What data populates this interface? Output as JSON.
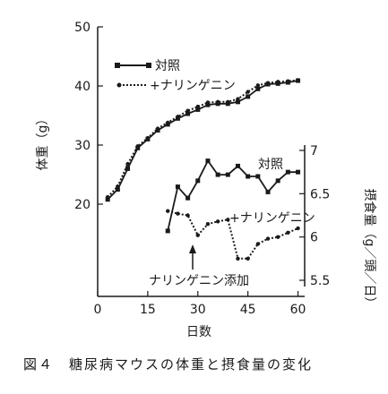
{
  "chart_data": [
    {
      "type": "line",
      "ylabel": "体重（g）",
      "xlabel": "日数",
      "xlim": [
        0,
        62
      ],
      "ylim": [
        10,
        50
      ],
      "xticks": [
        "0",
        "15",
        "30",
        "45",
        "60"
      ],
      "yticks": [
        "20",
        "30",
        "40",
        "50"
      ],
      "legend_position": "top-left",
      "series": [
        {
          "name": "対照",
          "style": "solid-square",
          "x": [
            3,
            6,
            9,
            12,
            15,
            18,
            21,
            24,
            27,
            30,
            33,
            36,
            39,
            42,
            45,
            48,
            51,
            54,
            57,
            60
          ],
          "y": [
            20.8,
            22.5,
            26.0,
            29.5,
            31.0,
            32.5,
            33.5,
            34.5,
            35.3,
            36.0,
            36.8,
            37.0,
            37.0,
            37.3,
            38.2,
            39.5,
            40.3,
            40.4,
            40.6,
            40.9
          ]
        },
        {
          "name": "+ナリンゲニン",
          "style": "dotted-dot",
          "x": [
            3,
            6,
            9,
            12,
            15,
            18,
            21,
            24,
            27,
            30,
            33,
            36,
            39,
            42,
            45,
            48,
            51,
            54,
            57,
            60
          ],
          "y": [
            21.2,
            23.0,
            26.8,
            29.8,
            31.2,
            32.8,
            33.8,
            34.8,
            35.8,
            36.5,
            37.2,
            37.3,
            37.3,
            37.8,
            39.0,
            40.1,
            40.5,
            40.7,
            40.8,
            41.0
          ]
        }
      ]
    },
    {
      "type": "line",
      "ylabel": "摂食量（g／頭／日）",
      "ylim": [
        5.3,
        7.0
      ],
      "yticks": [
        "5.5",
        "6",
        "6.5",
        "7"
      ],
      "series": [
        {
          "name": "対照",
          "style": "solid-square",
          "x": [
            21,
            24,
            27,
            30,
            33,
            36,
            39,
            42,
            45,
            48,
            51,
            54,
            57,
            60
          ],
          "y": [
            6.07,
            6.58,
            6.45,
            6.65,
            6.88,
            6.72,
            6.72,
            6.82,
            6.7,
            6.7,
            6.52,
            6.65,
            6.75,
            6.75
          ]
        },
        {
          "name": "+ナリンゲニン",
          "style": "dotted-dot",
          "x": [
            21,
            24,
            27,
            30,
            33,
            36,
            39,
            42,
            45,
            48,
            51,
            54,
            57,
            60
          ],
          "y": [
            6.3,
            6.27,
            6.25,
            6.02,
            6.15,
            6.18,
            6.2,
            5.75,
            5.75,
            5.92,
            5.98,
            6.0,
            6.05,
            6.1
          ]
        }
      ]
    }
  ],
  "annotations": {
    "control_label": "対照",
    "naringenin_label": "+ナリンゲニン",
    "arrow_label": "ナリンゲニン添加",
    "arrow_day": 28
  },
  "caption": "図４　糖尿病マウスの体重と摂食量の変化",
  "colors": {
    "ink": "#1a1a1a"
  }
}
